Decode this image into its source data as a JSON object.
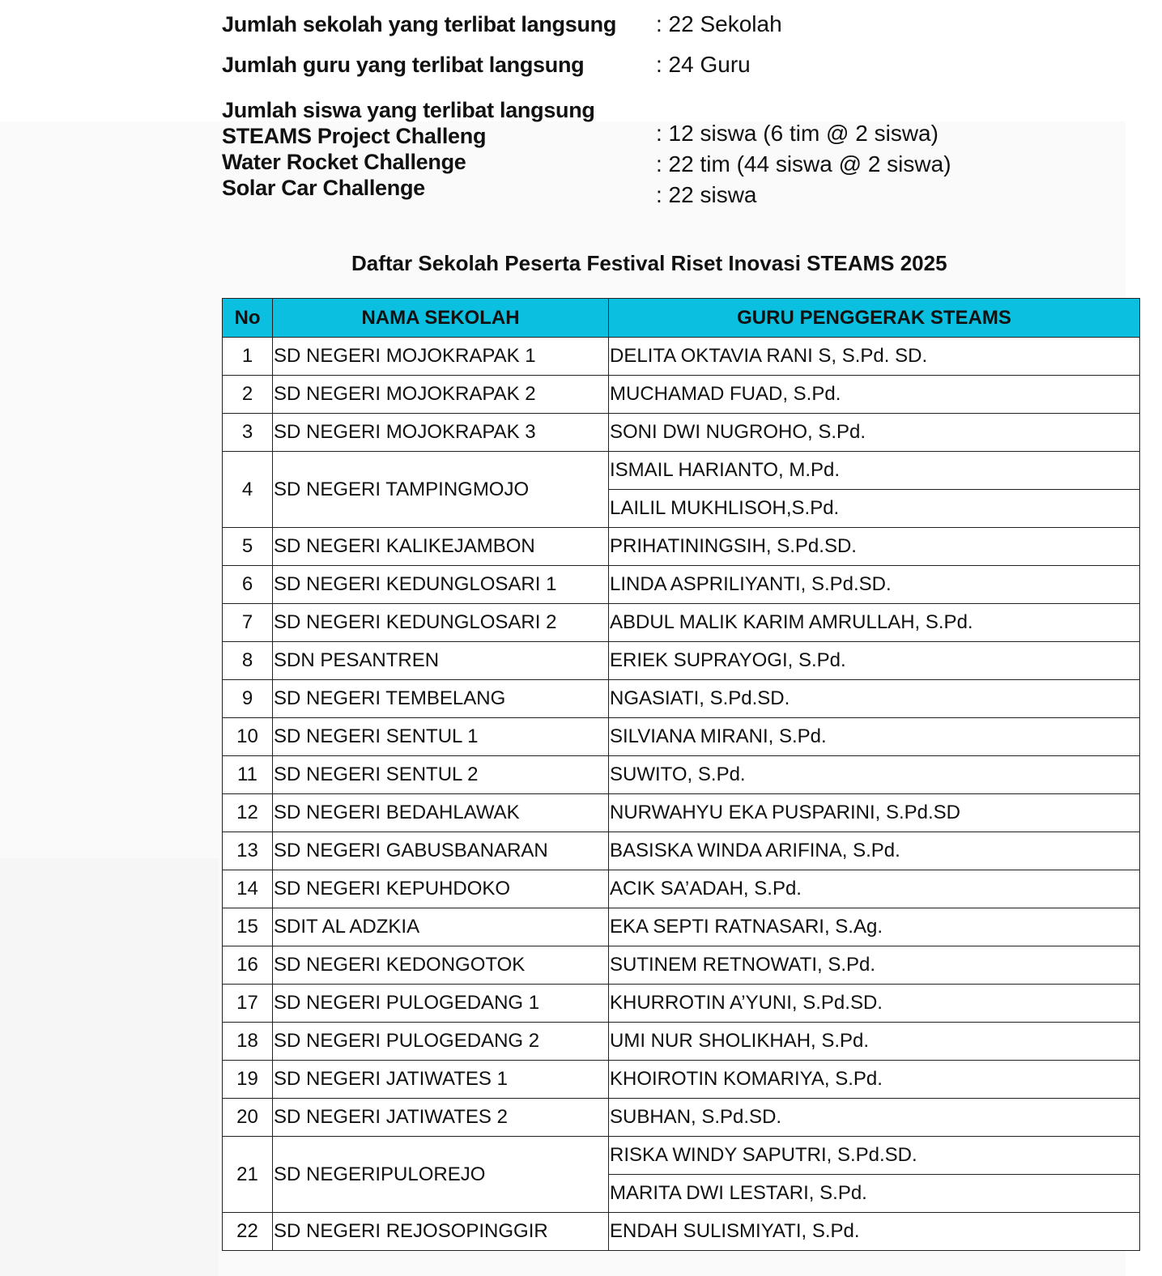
{
  "summary": {
    "schools_label": "Jumlah sekolah yang terlibat langsung",
    "schools_value": ": 22 Sekolah",
    "teachers_label": "Jumlah guru yang terlibat langsung",
    "teachers_value": ": 24 Guru",
    "students_label": "Jumlah siswa yang terlibat langsung",
    "steams_label": "STEAMS Project Challeng",
    "steams_value": ": 12 siswa (6 tim @ 2 siswa)",
    "rocket_label": "Water Rocket Challenge",
    "rocket_value": ": 22 tim (44 siswa @ 2 siswa)",
    "solar_label": "Solar Car Challenge",
    "solar_value": ": 22 siswa"
  },
  "table_title": "Daftar Sekolah Peserta Festival Riset Inovasi STEAMS 2025",
  "header_color": "#0bbfe0",
  "columns": [
    "No",
    "NAMA SEKOLAH",
    "GURU PENGGERAK STEAMS"
  ],
  "rows": [
    {
      "no": "1",
      "school": "SD NEGERI MOJOKRAPAK 1",
      "teachers": [
        "DELITA OKTAVIA RANI S, S.Pd. SD."
      ]
    },
    {
      "no": "2",
      "school": "SD NEGERI MOJOKRAPAK 2",
      "teachers": [
        "MUCHAMAD FUAD, S.Pd."
      ]
    },
    {
      "no": "3",
      "school": "SD NEGERI MOJOKRAPAK 3",
      "teachers": [
        "SONI DWI NUGROHO, S.Pd."
      ]
    },
    {
      "no": "4",
      "school": "SD NEGERI TAMPINGMOJO",
      "teachers": [
        "ISMAIL HARIANTO, M.Pd.",
        "LAILIL MUKHLISOH,S.Pd."
      ]
    },
    {
      "no": "5",
      "school": "SD NEGERI KALIKEJAMBON",
      "teachers": [
        "PRIHATININGSIH, S.Pd.SD."
      ]
    },
    {
      "no": "6",
      "school": "SD NEGERI KEDUNGLOSARI 1",
      "teachers": [
        "LINDA ASPRILIYANTI, S.Pd.SD."
      ]
    },
    {
      "no": "7",
      "school": "SD NEGERI KEDUNGLOSARI 2",
      "teachers": [
        "ABDUL MALIK KARIM AMRULLAH, S.Pd."
      ]
    },
    {
      "no": "8",
      "school": "SDN PESANTREN",
      "teachers": [
        "ERIEK SUPRAYOGI, S.Pd."
      ]
    },
    {
      "no": "9",
      "school": "SD NEGERI TEMBELANG",
      "teachers": [
        "NGASIATI, S.Pd.SD."
      ]
    },
    {
      "no": "10",
      "school": "SD NEGERI SENTUL 1",
      "teachers": [
        "SILVIANA MIRANI, S.Pd."
      ]
    },
    {
      "no": "11",
      "school": "SD NEGERI SENTUL 2",
      "teachers": [
        "SUWITO, S.Pd."
      ]
    },
    {
      "no": "12",
      "school": "SD NEGERI BEDAHLAWAK",
      "teachers": [
        "NURWAHYU EKA PUSPARINI, S.Pd.SD"
      ]
    },
    {
      "no": "13",
      "school": "SD NEGERI GABUSBANARAN",
      "teachers": [
        "BASISKA WINDA ARIFINA, S.Pd."
      ]
    },
    {
      "no": "14",
      "school": "SD NEGERI KEPUHDOKO",
      "teachers": [
        "ACIK SA’ADAH, S.Pd."
      ]
    },
    {
      "no": "15",
      "school": "SDIT AL ADZKIA",
      "teachers": [
        "EKA SEPTI RATNASARI, S.Ag."
      ]
    },
    {
      "no": "16",
      "school": "SD NEGERI KEDONGOTOK",
      "teachers": [
        "SUTINEM RETNOWATI, S.Pd."
      ]
    },
    {
      "no": "17",
      "school": "SD NEGERI PULOGEDANG 1",
      "teachers": [
        "KHURROTIN A’YUNI, S.Pd.SD."
      ]
    },
    {
      "no": "18",
      "school": "SD NEGERI PULOGEDANG 2",
      "teachers": [
        "UMI NUR SHOLIKHAH, S.Pd."
      ]
    },
    {
      "no": "19",
      "school": "SD NEGERI JATIWATES 1",
      "teachers": [
        "KHOIROTIN KOMARIYA, S.Pd."
      ]
    },
    {
      "no": "20",
      "school": "SD NEGERI JATIWATES 2",
      "teachers": [
        "SUBHAN, S.Pd.SD."
      ]
    },
    {
      "no": "21",
      "school": "SD NEGERIPULOREJO",
      "teachers": [
        "RISKA WINDY SAPUTRI, S.Pd.SD.",
        "MARITA DWI LESTARI, S.Pd."
      ]
    },
    {
      "no": "22",
      "school": "SD NEGERI REJOSOPINGGIR",
      "teachers": [
        "ENDAH SULISMIYATI, S.Pd."
      ]
    }
  ]
}
